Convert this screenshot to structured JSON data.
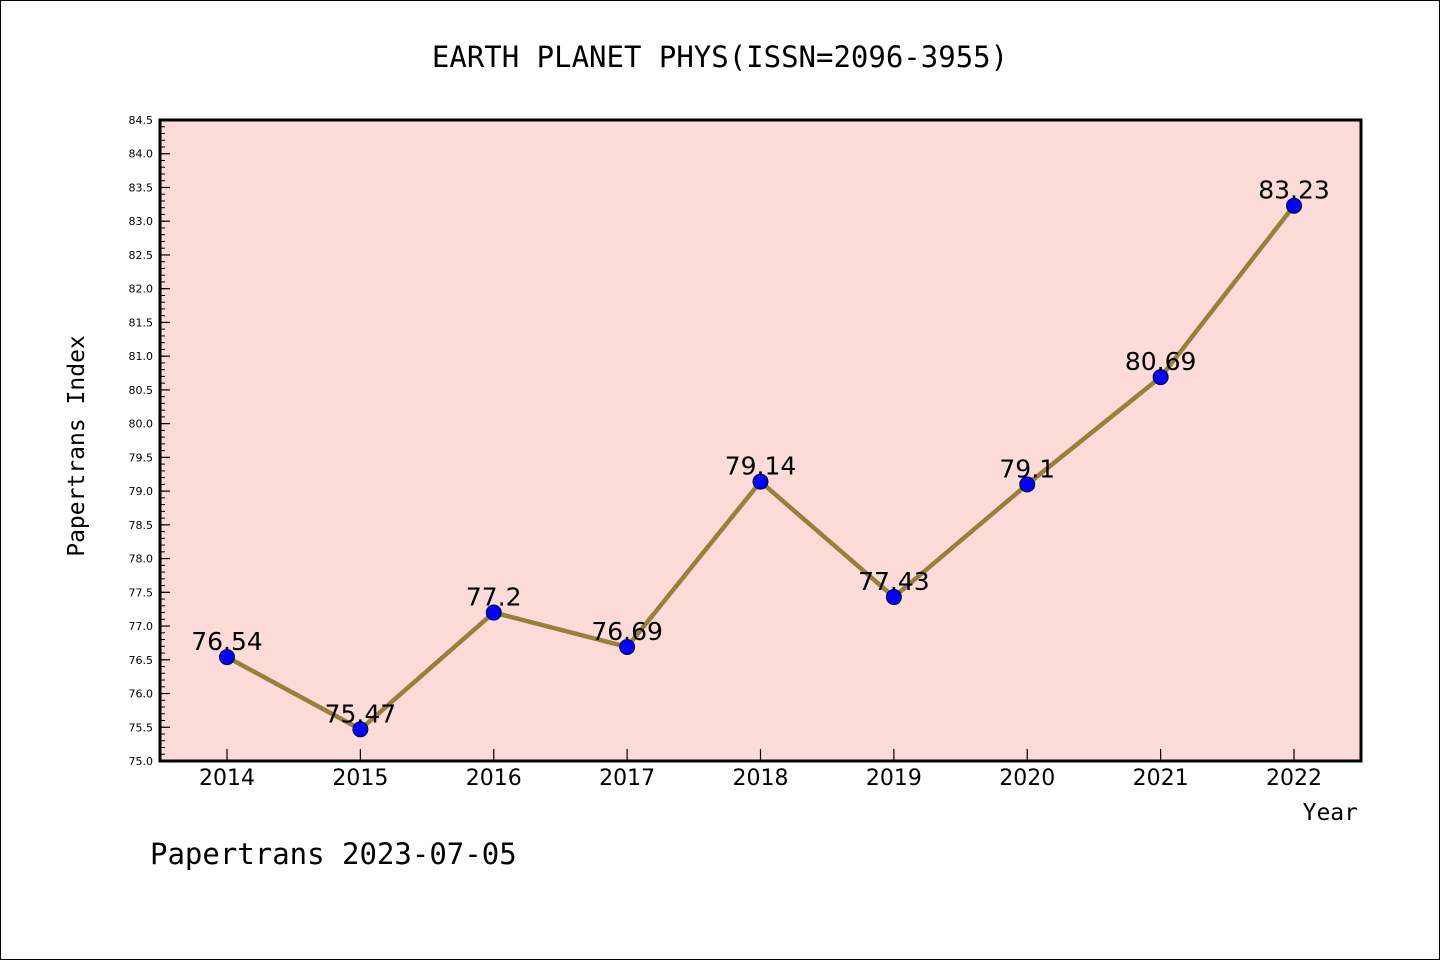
{
  "footer": "Papertrans 2023-07-05",
  "colors": {
    "plot_background": "#fddbd8",
    "line": "#9a7f3a",
    "marker": "#0000ff",
    "axis": "#000000"
  },
  "chart_data": {
    "type": "line",
    "title": "EARTH PLANET PHYS(ISSN=2096-3955)",
    "xlabel": "Year",
    "ylabel": "Papertrans Index",
    "categories": [
      "2014",
      "2015",
      "2016",
      "2017",
      "2018",
      "2019",
      "2020",
      "2021",
      "2022"
    ],
    "series": [
      {
        "values": [
          76.54,
          75.47,
          77.2,
          76.69,
          79.14,
          77.43,
          79.1,
          80.69,
          83.23
        ],
        "labels": [
          "76.54",
          "75.47",
          "77.2",
          "76.69",
          "79.14",
          "77.43",
          "79.1",
          "80.69",
          "83.23"
        ]
      }
    ],
    "ylim": [
      75.0,
      84.5
    ],
    "yticks": [
      "75.0",
      "75.5",
      "76.0",
      "76.5",
      "77.0",
      "77.5",
      "78.0",
      "78.5",
      "79.0",
      "79.5",
      "80.0",
      "80.5",
      "81.0",
      "81.5",
      "82.0",
      "82.5",
      "83.0",
      "83.5",
      "84.0",
      "84.5"
    ],
    "grid": false,
    "legend": "none"
  }
}
